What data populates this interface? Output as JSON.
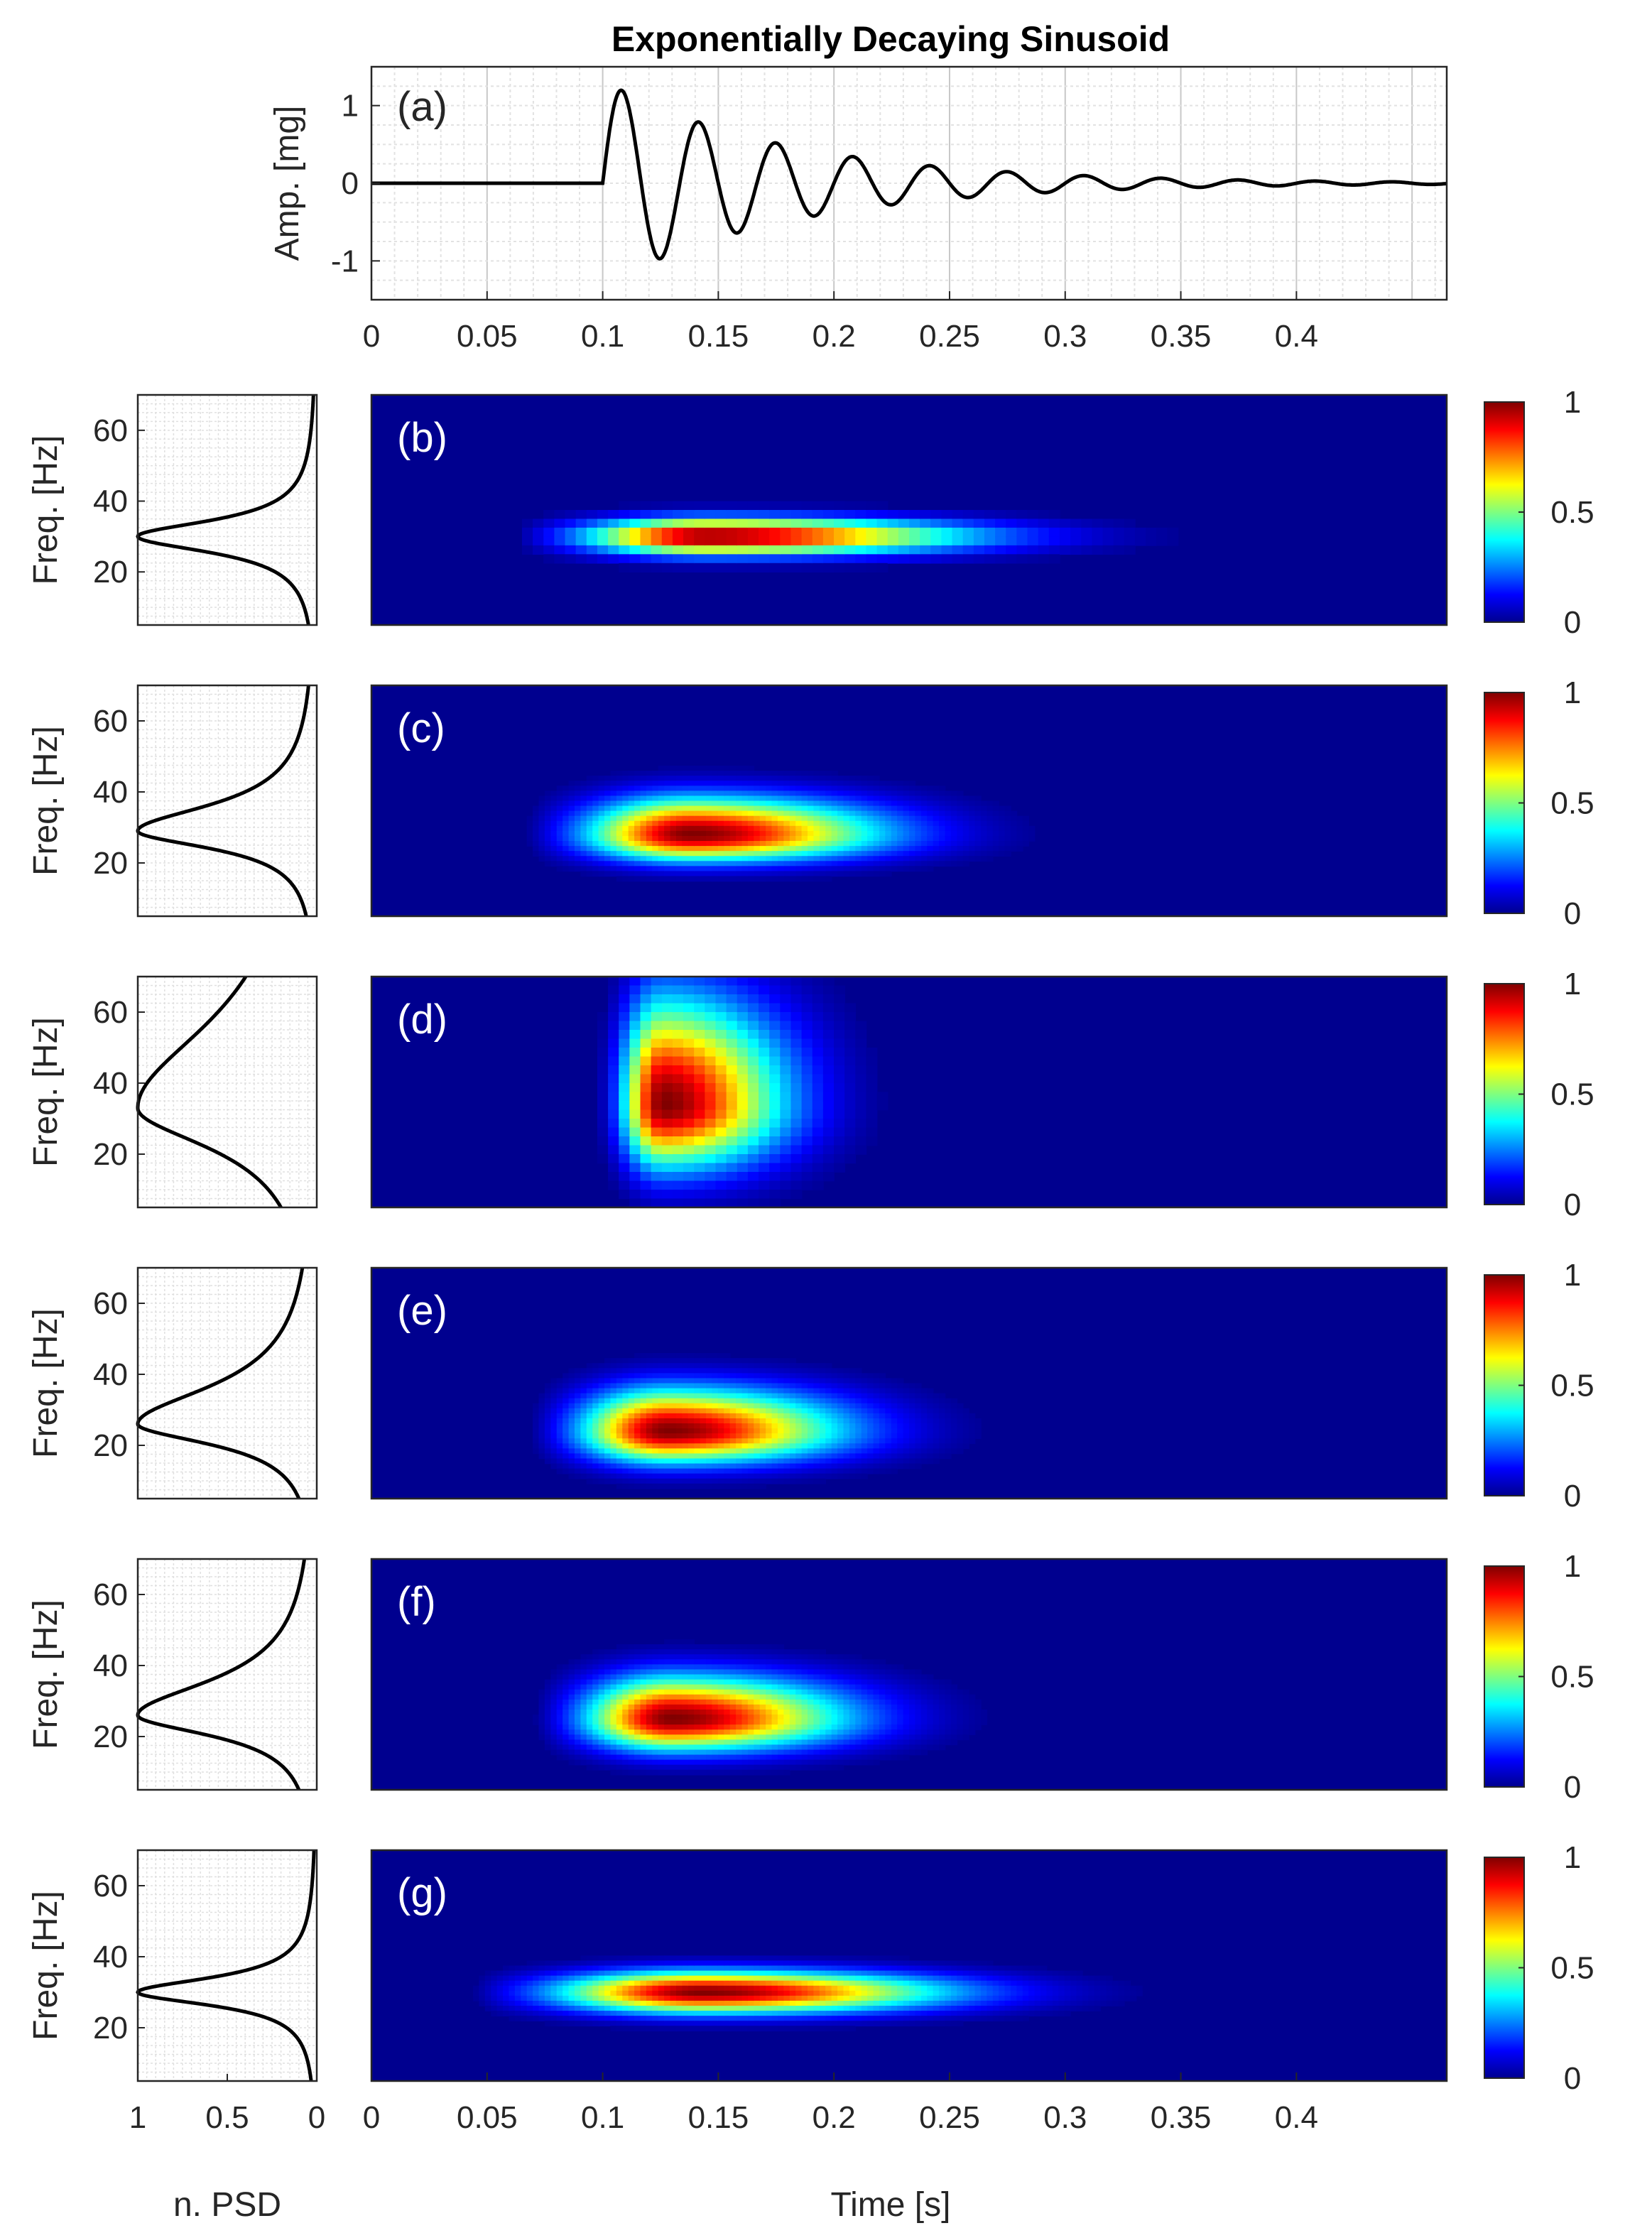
{
  "figure": {
    "title": "Exponentially Decaying Sinusoid",
    "xlabel": "Time [s]",
    "psd_xlabel": "n. PSD",
    "freq_ylabel": "Freq. [Hz]",
    "amp_ylabel": "Amp. [mg]",
    "colors": {
      "frame": "#262626",
      "signal": "#000000",
      "background_map": "#00008f"
    }
  },
  "chart_data": [
    {
      "id": "a",
      "type": "line",
      "panel_label": "(a)",
      "title": "Exponentially Decaying Sinusoid",
      "xlabel": "",
      "ylabel": "Amp. [mg]",
      "xlim": [
        0,
        0.465
      ],
      "ylim": [
        -1.5,
        1.5
      ],
      "xticks": [
        0,
        0.05,
        0.1,
        0.15,
        0.2,
        0.25,
        0.3,
        0.35,
        0.4
      ],
      "xtick_labels": [
        "0",
        "0.05",
        "0.1",
        "0.15",
        "0.2",
        "0.25",
        "0.3",
        "0.35",
        "0.4"
      ],
      "yticks": [
        1,
        0,
        -1
      ],
      "ytick_labels": [
        "1",
        "0",
        "-1"
      ],
      "grid": true,
      "signal": {
        "onset_s": 0.1,
        "frequency_hz": 30,
        "decay_per_s": 12.5,
        "peak_amplitude": 1.3
      },
      "peaks": [
        {
          "t": 0.109,
          "amp": 1.3
        },
        {
          "t": 0.126,
          "amp": -1.0
        },
        {
          "t": 0.143,
          "amp": 0.8
        },
        {
          "t": 0.159,
          "amp": -0.6
        },
        {
          "t": 0.176,
          "amp": 0.5
        },
        {
          "t": 0.193,
          "amp": -0.38
        },
        {
          "t": 0.21,
          "amp": 0.3
        },
        {
          "t": 0.226,
          "amp": -0.22
        },
        {
          "t": 0.243,
          "amp": 0.18
        },
        {
          "t": 0.26,
          "amp": -0.13
        },
        {
          "t": 0.276,
          "amp": 0.1
        },
        {
          "t": 0.293,
          "amp": -0.08
        }
      ]
    },
    {
      "id": "b",
      "type": "heatmap",
      "panel_label": "(b)",
      "xlim": [
        0,
        0.465
      ],
      "ylim": [
        5,
        70
      ],
      "peak": {
        "t": 0.145,
        "f": 30
      },
      "spread": {
        "t_left": 0.035,
        "t_right": 0.075,
        "f_low": 3.5,
        "f_high": 3.5
      },
      "style": "blocky",
      "psd": {
        "peak_freq": 30,
        "width_low": 5.5,
        "width_high": 5.5
      },
      "colorbar": {
        "ticks": [
          1,
          0.5,
          0
        ],
        "tick_labels": [
          "1",
          "0.5",
          "0"
        ]
      }
    },
    {
      "id": "c",
      "type": "heatmap",
      "panel_label": "(c)",
      "xlim": [
        0,
        0.465
      ],
      "ylim": [
        5,
        70
      ],
      "peak": {
        "t": 0.138,
        "f": 28
      },
      "spread": {
        "t_left": 0.03,
        "t_right": 0.055,
        "f_low": 5,
        "f_high": 7
      },
      "style": "smooth",
      "psd": {
        "peak_freq": 29,
        "width_low": 6,
        "width_high": 9
      },
      "colorbar": {
        "ticks": [
          1,
          0.5,
          0
        ],
        "tick_labels": [
          "1",
          "0.5",
          "0"
        ]
      }
    },
    {
      "id": "d",
      "type": "heatmap",
      "panel_label": "(d)",
      "xlim": [
        0,
        0.465
      ],
      "ylim": [
        5,
        70
      ],
      "peak": {
        "t": 0.126,
        "f": 34
      },
      "spread": {
        "t_left": 0.012,
        "t_right": 0.035,
        "f_low": 12,
        "f_high": 20
      },
      "style": "blocky",
      "psd": {
        "peak_freq": 33,
        "width_low": 14,
        "width_high": 30
      },
      "colorbar": {
        "ticks": [
          1,
          0.5,
          0
        ],
        "tick_labels": [
          "1",
          "0.5",
          "0"
        ]
      }
    },
    {
      "id": "e",
      "type": "heatmap",
      "panel_label": "(e)",
      "xlim": [
        0,
        0.465
      ],
      "ylim": [
        5,
        70
      ],
      "peak": {
        "t": 0.128,
        "f": 24
      },
      "spread": {
        "t_left": 0.025,
        "t_right": 0.05,
        "f_low": 6,
        "f_high": 8
      },
      "style": "smooth",
      "psd": {
        "peak_freq": 26,
        "width_low": 7,
        "width_high": 13
      },
      "colorbar": {
        "ticks": [
          1,
          0.5,
          0
        ],
        "tick_labels": [
          "1",
          "0.5",
          "0"
        ]
      }
    },
    {
      "id": "f",
      "type": "heatmap",
      "panel_label": "(f)",
      "xlim": [
        0,
        0.465
      ],
      "ylim": [
        5,
        70
      ],
      "peak": {
        "t": 0.13,
        "f": 25
      },
      "spread": {
        "t_left": 0.025,
        "t_right": 0.05,
        "f_low": 6,
        "f_high": 8
      },
      "style": "smooth",
      "psd": {
        "peak_freq": 26,
        "width_low": 7,
        "width_high": 12
      },
      "colorbar": {
        "ticks": [
          1,
          0.5,
          0
        ],
        "tick_labels": [
          "1",
          "0.5",
          "0"
        ]
      }
    },
    {
      "id": "g",
      "type": "heatmap",
      "panel_label": "(g)",
      "xlim": [
        0,
        0.465
      ],
      "ylim": [
        5,
        70
      ],
      "peak": {
        "t": 0.143,
        "f": 30
      },
      "spread": {
        "t_left": 0.042,
        "t_right": 0.07,
        "f_low": 4,
        "f_high": 4
      },
      "style": "smooth",
      "psd": {
        "peak_freq": 30,
        "width_low": 4.5,
        "width_high": 5
      },
      "colorbar": {
        "ticks": [
          1,
          0.5,
          0
        ],
        "tick_labels": [
          "1",
          "0.5",
          "0"
        ]
      },
      "xticks": [
        0,
        0.05,
        0.1,
        0.15,
        0.2,
        0.25,
        0.3,
        0.35,
        0.4
      ],
      "xtick_labels": [
        "0",
        "0.05",
        "0.1",
        "0.15",
        "0.2",
        "0.25",
        "0.3",
        "0.35",
        "0.4"
      ],
      "xlabel": "Time [s]"
    }
  ],
  "psd_axes": {
    "xlim": [
      1,
      0
    ],
    "xticks": [
      1,
      0.5,
      0
    ],
    "xtick_labels": [
      "1",
      "0.5",
      "0"
    ],
    "xlabel": "n. PSD",
    "ylim": [
      5,
      70
    ],
    "yticks": [
      60,
      40,
      20
    ],
    "ytick_labels": [
      "60",
      "40",
      "20"
    ],
    "ylabel": "Freq. [Hz]",
    "grid": true
  }
}
